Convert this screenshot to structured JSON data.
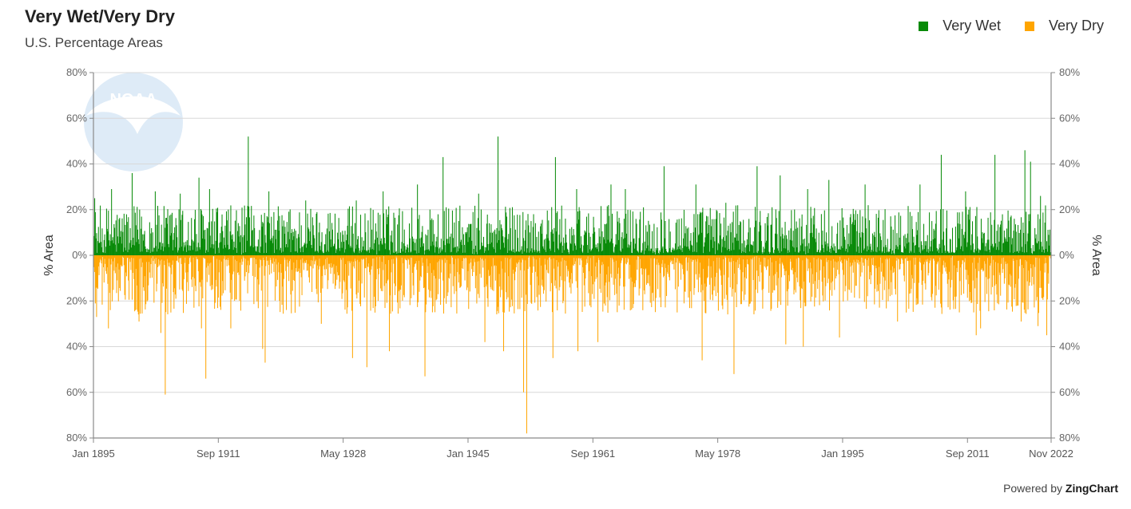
{
  "header": {
    "title": "Very Wet/Very Dry",
    "subtitle": "U.S. Percentage Areas"
  },
  "legend": {
    "items": [
      {
        "label": "Very Wet",
        "color": "#088a08"
      },
      {
        "label": "Very Dry",
        "color": "#ffa500"
      }
    ]
  },
  "footer": {
    "powered_prefix": "Powered by ",
    "powered_brand": "ZingChart"
  },
  "watermark": {
    "text": "NOAA"
  },
  "chart_data": {
    "type": "bar",
    "ylabel": "% Area",
    "y2label": "% Area",
    "ylim": [
      -80,
      80
    ],
    "yticks": [
      {
        "value": 80,
        "label": "80%"
      },
      {
        "value": 60,
        "label": "60%"
      },
      {
        "value": 40,
        "label": "40%"
      },
      {
        "value": 20,
        "label": "20%"
      },
      {
        "value": 0,
        "label": "0%"
      },
      {
        "value": -20,
        "label": "20%"
      },
      {
        "value": -40,
        "label": "40%"
      },
      {
        "value": -60,
        "label": "60%"
      },
      {
        "value": -80,
        "label": "80%"
      }
    ],
    "xrange": [
      "1895-01",
      "2022-11"
    ],
    "xticks": [
      {
        "date": "1895-01",
        "label": "Jan 1895"
      },
      {
        "date": "1911-09",
        "label": "Sep 1911"
      },
      {
        "date": "1928-05",
        "label": "May 1928"
      },
      {
        "date": "1945-01",
        "label": "Jan 1945"
      },
      {
        "date": "1961-09",
        "label": "Sep 1961"
      },
      {
        "date": "1978-05",
        "label": "May 1978"
      },
      {
        "date": "1995-01",
        "label": "Jan 1995"
      },
      {
        "date": "2011-09",
        "label": "Sep 2011"
      },
      {
        "date": "2022-11",
        "label": "Nov 2022"
      }
    ],
    "grid": true,
    "legend_position": "top-right",
    "series": [
      {
        "name": "Very Wet",
        "color": "#088a08",
        "direction": "up",
        "peaks": [
          {
            "date": "1895-03",
            "value": 25
          },
          {
            "date": "1897-06",
            "value": 29
          },
          {
            "date": "1900-03",
            "value": 36
          },
          {
            "date": "1903-04",
            "value": 28
          },
          {
            "date": "1906-08",
            "value": 27
          },
          {
            "date": "1909-02",
            "value": 34
          },
          {
            "date": "1910-07",
            "value": 29
          },
          {
            "date": "1915-09",
            "value": 52
          },
          {
            "date": "1918-06",
            "value": 28
          },
          {
            "date": "1923-05",
            "value": 24
          },
          {
            "date": "1930-02",
            "value": 24
          },
          {
            "date": "1933-09",
            "value": 28
          },
          {
            "date": "1938-04",
            "value": 31
          },
          {
            "date": "1941-09",
            "value": 43
          },
          {
            "date": "1946-06",
            "value": 27
          },
          {
            "date": "1949-01",
            "value": 52
          },
          {
            "date": "1953-10",
            "value": 18
          },
          {
            "date": "1956-09",
            "value": 43
          },
          {
            "date": "1959-07",
            "value": 29
          },
          {
            "date": "1964-02",
            "value": 31
          },
          {
            "date": "1966-01",
            "value": 29
          },
          {
            "date": "1971-03",
            "value": 39
          },
          {
            "date": "1975-06",
            "value": 31
          },
          {
            "date": "1979-06",
            "value": 23
          },
          {
            "date": "1983-08",
            "value": 39
          },
          {
            "date": "1986-09",
            "value": 35
          },
          {
            "date": "1990-05",
            "value": 29
          },
          {
            "date": "1993-03",
            "value": 33
          },
          {
            "date": "1998-01",
            "value": 31
          },
          {
            "date": "2005-05",
            "value": 31
          },
          {
            "date": "2008-03",
            "value": 44
          },
          {
            "date": "2011-06",
            "value": 28
          },
          {
            "date": "2015-05",
            "value": 44
          },
          {
            "date": "2019-05",
            "value": 46
          },
          {
            "date": "2020-02",
            "value": 41
          },
          {
            "date": "2021-06",
            "value": 26
          }
        ]
      },
      {
        "name": "Very Dry",
        "color": "#ffa500",
        "direction": "down",
        "peaks": [
          {
            "date": "1895-06",
            "value": 27
          },
          {
            "date": "1897-01",
            "value": 32
          },
          {
            "date": "1901-02",
            "value": 29
          },
          {
            "date": "1904-01",
            "value": 34
          },
          {
            "date": "1904-08",
            "value": 61
          },
          {
            "date": "1909-06",
            "value": 32
          },
          {
            "date": "1910-01",
            "value": 54
          },
          {
            "date": "1913-05",
            "value": 32
          },
          {
            "date": "1917-08",
            "value": 41
          },
          {
            "date": "1917-12",
            "value": 47
          },
          {
            "date": "1925-06",
            "value": 30
          },
          {
            "date": "1929-08",
            "value": 45
          },
          {
            "date": "1931-07",
            "value": 49
          },
          {
            "date": "1934-07",
            "value": 42
          },
          {
            "date": "1939-04",
            "value": 53
          },
          {
            "date": "1947-04",
            "value": 38
          },
          {
            "date": "1949-10",
            "value": 42
          },
          {
            "date": "1952-06",
            "value": 60
          },
          {
            "date": "1952-11",
            "value": 78
          },
          {
            "date": "1956-05",
            "value": 45
          },
          {
            "date": "1959-09",
            "value": 42
          },
          {
            "date": "1962-05",
            "value": 38
          },
          {
            "date": "1976-04",
            "value": 46
          },
          {
            "date": "1980-07",
            "value": 52
          },
          {
            "date": "1987-06",
            "value": 39
          },
          {
            "date": "1989-10",
            "value": 40
          },
          {
            "date": "1994-08",
            "value": 36
          },
          {
            "date": "2002-05",
            "value": 29
          },
          {
            "date": "2012-11",
            "value": 35
          },
          {
            "date": "2013-06",
            "value": 32
          },
          {
            "date": "2018-11",
            "value": 29
          },
          {
            "date": "2021-02",
            "value": 31
          },
          {
            "date": "2022-04",
            "value": 35
          }
        ]
      }
    ]
  }
}
